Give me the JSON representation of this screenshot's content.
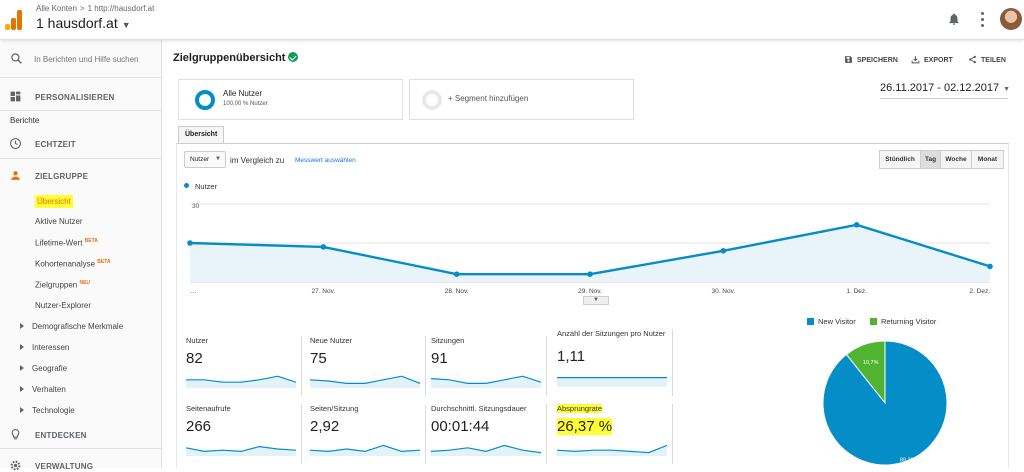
{
  "topbar": {
    "breadcrumb_1": "Alle Konten",
    "breadcrumb_sep": ">",
    "breadcrumb_2": "1 http://hausdorf.at",
    "account": "1 hausdorf.at",
    "logo_colors": [
      "#f9ab00",
      "#e37400",
      "#e37400"
    ]
  },
  "sidebar": {
    "search_placeholder": "In Berichten und Hilfe suchen",
    "personalize": "PERSONALISIEREN",
    "reports_label": "Berichte",
    "realtime": "ECHTZEIT",
    "audience": "ZIELGRUPPE",
    "audience_items": [
      {
        "label": "Übersicht"
      },
      {
        "label": "Aktive Nutzer"
      },
      {
        "label": "Lifetime-Wert",
        "badge": "BETA"
      },
      {
        "label": "Kohortenanalyse",
        "badge": "BETA"
      },
      {
        "label": "Zielgruppen",
        "badge": "NEU"
      },
      {
        "label": "Nutzer-Explorer"
      }
    ],
    "expandables": [
      "Demografische Merkmale",
      "Interessen",
      "Geografie",
      "Verhalten",
      "Technologie"
    ],
    "discover": "ENTDECKEN",
    "admin": "VERWALTUNG",
    "accent_color": "#e8710a",
    "highlight_color": "#ffff33"
  },
  "header": {
    "title": "Zielgruppenübersicht",
    "save": "SPEICHERN",
    "export": "EXPORT",
    "share": "TEILEN"
  },
  "segments": {
    "all_users": "Alle Nutzer",
    "all_users_sub": "100,00 % Nutzer",
    "add_segment": "+ Segment hinzufügen"
  },
  "date_range": "26.11.2017 - 02.12.2017",
  "tabs": [
    "Übersicht"
  ],
  "controls": {
    "metric": "Nutzer",
    "compare": "im Vergleich zu",
    "select_metric": "Messwert auswählen",
    "granularity": [
      "Stündlich",
      "Tag",
      "Woche",
      "Monat"
    ],
    "granularity_selected": "Tag"
  },
  "chart_data": [
    {
      "type": "area",
      "series": [
        {
          "name": "Nutzer",
          "values": [
            15,
            13.5,
            3,
            3,
            12,
            22,
            6
          ]
        }
      ],
      "categories": [
        "…",
        "27. Nov.",
        "28. Nov.",
        "29. Nov.",
        "30. Nov.",
        "1. Dez.",
        "2. Dez."
      ],
      "ylim": [
        0,
        30
      ],
      "yticks": [
        15,
        30
      ],
      "color": "#058dc7",
      "grid": true
    },
    {
      "type": "pie",
      "categories": [
        "New Visitor",
        "Returning Visitor"
      ],
      "values": [
        89.3,
        10.7
      ],
      "labels": [
        "89,3%",
        "10,7%"
      ],
      "colors": [
        "#058dc7",
        "#50b432"
      ],
      "legend": "top"
    }
  ],
  "metrics": [
    {
      "label": "Nutzer",
      "value": "82",
      "spark": [
        6,
        6,
        4,
        4,
        6,
        9,
        4
      ]
    },
    {
      "label": "Neue Nutzer",
      "value": "75",
      "spark": [
        6,
        5,
        3,
        3,
        6,
        9,
        3
      ]
    },
    {
      "label": "Sitzungen",
      "value": "91",
      "spark": [
        7,
        6,
        3,
        3,
        6,
        9,
        4
      ]
    },
    {
      "label": "Anzahl der Sitzungen pro Nutzer",
      "value": "1,11",
      "spark": [
        7,
        7,
        7,
        7,
        7,
        7,
        7
      ]
    },
    {
      "label": "Seitenaufrufe",
      "value": "266",
      "spark": [
        6,
        3,
        4,
        3,
        7,
        5,
        4
      ]
    },
    {
      "label": "Seiten/Sitzung",
      "value": "2,92",
      "spark": [
        4,
        3,
        5,
        3,
        8,
        3,
        4
      ]
    },
    {
      "label": "Durchschnittl. Sitzungsdauer",
      "value": "00:01:44",
      "spark": [
        3,
        4,
        6,
        3,
        8,
        4,
        2
      ]
    },
    {
      "label": "Absprungrate",
      "value": "26,37 %",
      "spark": [
        4,
        3,
        4,
        4,
        3,
        2,
        8
      ]
    }
  ]
}
